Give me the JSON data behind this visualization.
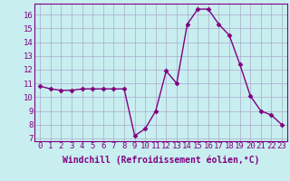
{
  "x": [
    0,
    1,
    2,
    3,
    4,
    5,
    6,
    7,
    8,
    9,
    10,
    11,
    12,
    13,
    14,
    15,
    16,
    17,
    18,
    19,
    20,
    21,
    22,
    23
  ],
  "y": [
    10.8,
    10.6,
    10.5,
    10.5,
    10.6,
    10.6,
    10.6,
    10.6,
    10.6,
    7.2,
    7.7,
    9.0,
    11.9,
    11.0,
    15.3,
    16.4,
    16.4,
    15.3,
    14.5,
    12.4,
    10.1,
    9.0,
    8.7,
    8.0
  ],
  "line_color": "#800080",
  "marker": "D",
  "marker_size": 2.5,
  "bg_color": "#c8eef0",
  "grid_color": "#aaaacc",
  "xlabel": "Windchill (Refroidissement éolien,°C)",
  "xlabel_fontsize": 7.0,
  "ylabel_ticks": [
    7,
    8,
    9,
    10,
    11,
    12,
    13,
    14,
    15,
    16
  ],
  "ylim": [
    6.8,
    16.8
  ],
  "xlim": [
    -0.5,
    23.5
  ],
  "tick_fontsize": 6.5,
  "border_color": "#800080",
  "lw": 1.0
}
